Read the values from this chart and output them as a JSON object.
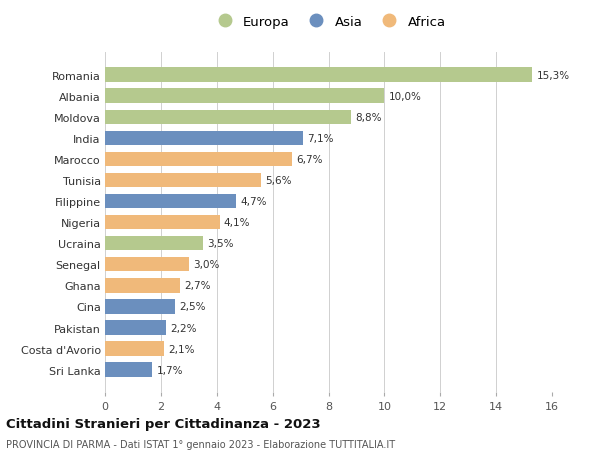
{
  "countries": [
    "Romania",
    "Albania",
    "Moldova",
    "India",
    "Marocco",
    "Tunisia",
    "Filippine",
    "Nigeria",
    "Ucraina",
    "Senegal",
    "Ghana",
    "Cina",
    "Pakistan",
    "Costa d'Avorio",
    "Sri Lanka"
  ],
  "values": [
    15.3,
    10.0,
    8.8,
    7.1,
    6.7,
    5.6,
    4.7,
    4.1,
    3.5,
    3.0,
    2.7,
    2.5,
    2.2,
    2.1,
    1.7
  ],
  "labels": [
    "15,3%",
    "10,0%",
    "8,8%",
    "7,1%",
    "6,7%",
    "5,6%",
    "4,7%",
    "4,1%",
    "3,5%",
    "3,0%",
    "2,7%",
    "2,5%",
    "2,2%",
    "2,1%",
    "1,7%"
  ],
  "continents": [
    "Europa",
    "Europa",
    "Europa",
    "Asia",
    "Africa",
    "Africa",
    "Asia",
    "Africa",
    "Europa",
    "Africa",
    "Africa",
    "Asia",
    "Asia",
    "Africa",
    "Asia"
  ],
  "colors": {
    "Europa": "#b5c98e",
    "Asia": "#6b8fbe",
    "Africa": "#f0b97a"
  },
  "title": "Cittadini Stranieri per Cittadinanza - 2023",
  "subtitle": "PROVINCIA DI PARMA - Dati ISTAT 1° gennaio 2023 - Elaborazione TUTTITALIA.IT",
  "xlim": [
    0,
    16
  ],
  "xticks": [
    0,
    2,
    4,
    6,
    8,
    10,
    12,
    14,
    16
  ],
  "background_color": "#ffffff",
  "grid_color": "#d0d0d0"
}
